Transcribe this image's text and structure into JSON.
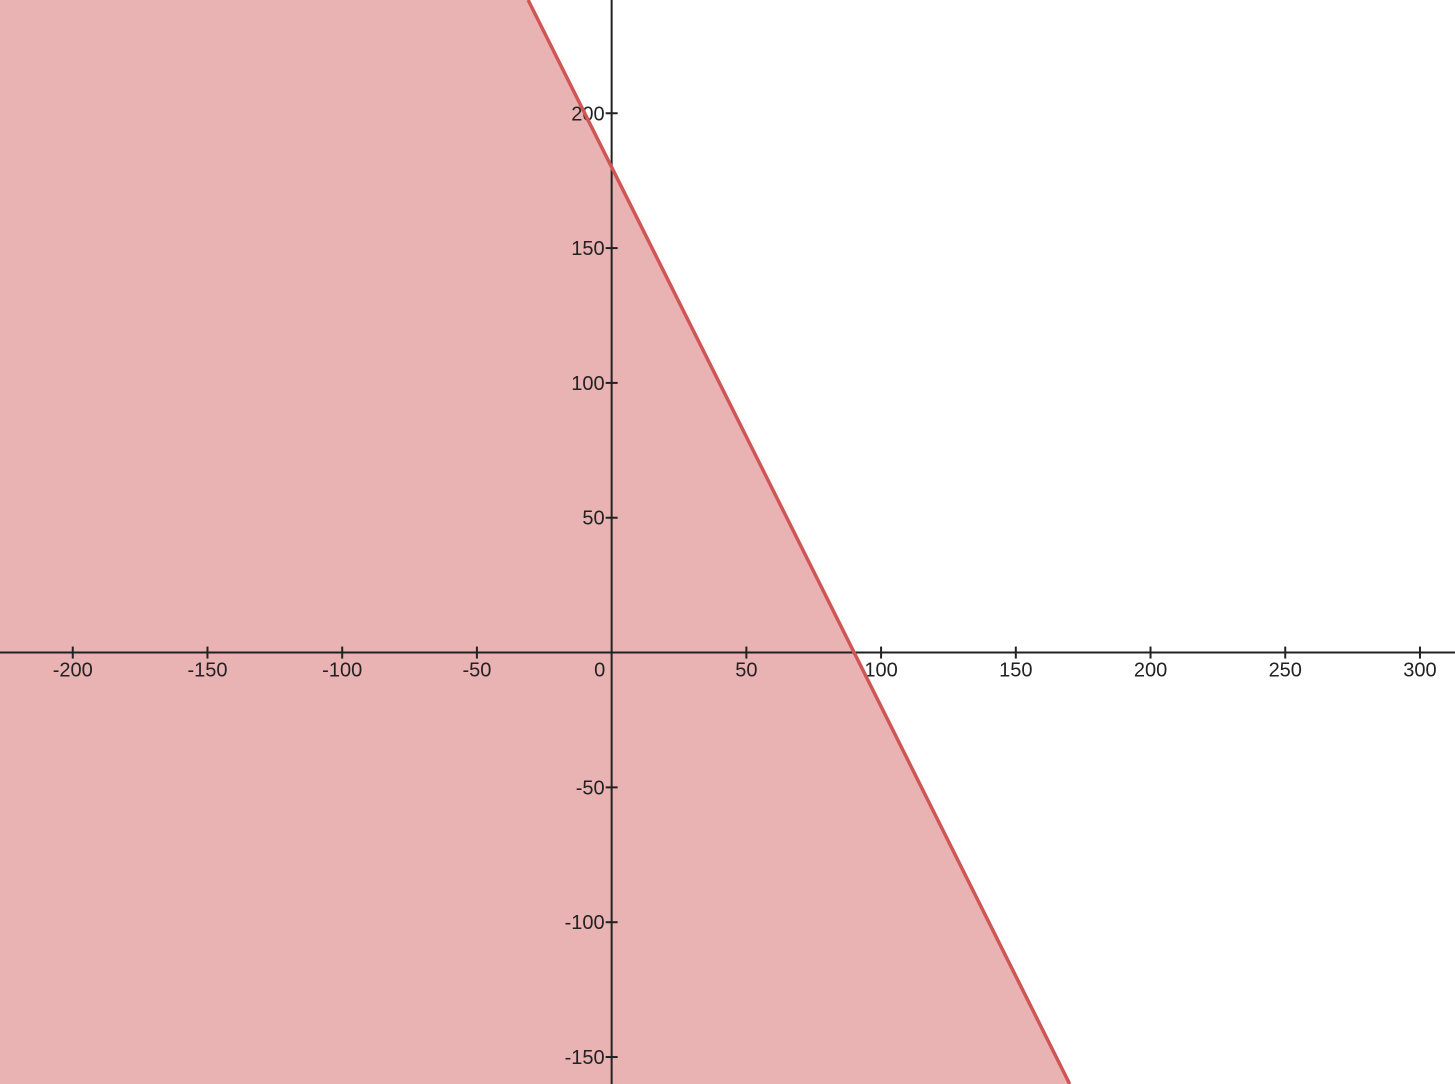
{
  "chart_data": {
    "type": "area",
    "title": "",
    "xlabel": "",
    "ylabel": "",
    "xlim": [
      -227,
      313
    ],
    "ylim": [
      -160,
      242
    ],
    "grid": false,
    "x_ticks": [
      {
        "value": -200,
        "label": "-200"
      },
      {
        "value": -150,
        "label": "-150"
      },
      {
        "value": -100,
        "label": "-100"
      },
      {
        "value": -50,
        "label": "-50"
      },
      {
        "value": 0,
        "label": "0"
      },
      {
        "value": 50,
        "label": "50"
      },
      {
        "value": 100,
        "label": "100"
      },
      {
        "value": 150,
        "label": "150"
      },
      {
        "value": 200,
        "label": "200"
      },
      {
        "value": 250,
        "label": "250"
      },
      {
        "value": 300,
        "label": "300"
      }
    ],
    "y_ticks": [
      {
        "value": 200,
        "label": "200"
      },
      {
        "value": 150,
        "label": "150"
      },
      {
        "value": 100,
        "label": "100"
      },
      {
        "value": 50,
        "label": "50"
      },
      {
        "value": -50,
        "label": "-50"
      },
      {
        "value": -100,
        "label": "-100"
      },
      {
        "value": -150,
        "label": "-150"
      }
    ],
    "boundary_line": {
      "x": [
        -32,
        0,
        90,
        171
      ],
      "y": [
        244,
        180,
        0,
        -162
      ],
      "slope": -2,
      "intercept": 180
    },
    "shaded_region": "below",
    "colors": {
      "line": "#d05555",
      "fill": "#e9b3b4",
      "axis": "#222222"
    }
  }
}
